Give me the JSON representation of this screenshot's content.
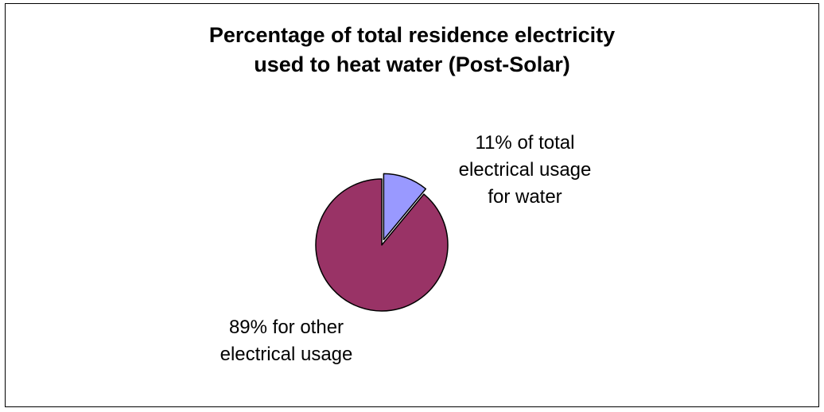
{
  "chart_data": {
    "type": "pie",
    "title_lines": [
      "Percentage of total residence electricity",
      "used to heat water (Post-Solar)"
    ],
    "slices": [
      {
        "value": 11,
        "label_lines": [
          "11% of total",
          "electrical usage",
          "for water"
        ],
        "color": "#9999ff",
        "exploded": true
      },
      {
        "value": 89,
        "label_lines": [
          "89% for other",
          "electrical usage"
        ],
        "color": "#993366",
        "exploded": false
      }
    ],
    "legend": "none",
    "slice_border_color": "#000000",
    "background": "#ffffff"
  }
}
